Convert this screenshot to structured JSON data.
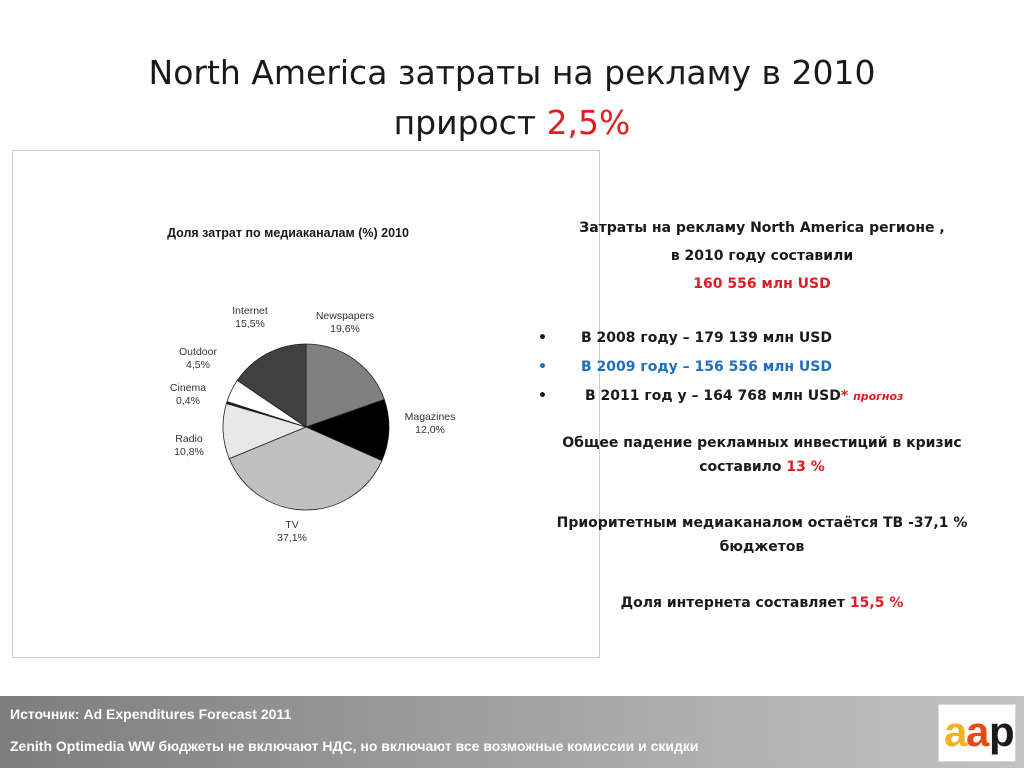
{
  "slide": {
    "title_line1": "North America затраты на рекламу в  2010",
    "title_line2_prefix": "прирост ",
    "title_line2_value": "2,5%"
  },
  "chart_data": {
    "type": "pie",
    "title": "Доля затрат по медиаканалам (%) 2010",
    "slices": [
      {
        "label": "Newspapers",
        "value": 19.6,
        "display": "19,6%",
        "color": "#808080"
      },
      {
        "label": "Magazines",
        "value": 12.0,
        "display": "12,0%",
        "color": "#000000"
      },
      {
        "label": "TV",
        "value": 37.1,
        "display": "37,1%",
        "color": "#c0c0c0"
      },
      {
        "label": "Radio",
        "value": 10.8,
        "display": "10,8%",
        "color": "#e8e8e8"
      },
      {
        "label": "Cinema",
        "value": 0.4,
        "display": "0,4%",
        "color": "#1a1a1a"
      },
      {
        "label": "Outdoor",
        "value": 4.5,
        "display": "4,5%",
        "color": "#ffffff"
      },
      {
        "label": "Internet",
        "value": 15.5,
        "display": "15,5%",
        "color": "#404040"
      }
    ]
  },
  "info": {
    "intro_line1": "Затраты на рекламу  North America регионе ,",
    "intro_line2": "в 2010 году составили",
    "intro_value": "160 556 млн USD",
    "bullet_symbol": "•",
    "bullet_2008": "В 2008 году – 179 139 млн USD",
    "bullet_2009": "В 2009 году – 156 556 млн USD",
    "bullet_2011": "В 2011 год у – 164 768 млн USD",
    "bullet_2011_star": "*",
    "bullet_2011_note": "прогноз",
    "decline_line1": "Общее падение рекламных инвестиций в  кризис",
    "decline_line2_prefix": "составило ",
    "decline_value": "13 %",
    "priority_line1": "Приоритетным медиаканалом остаётся ТВ -37,1 %",
    "priority_line2": "бюджетов",
    "internet_prefix": "Доля интернета составляет ",
    "internet_value": "15,5 %"
  },
  "footer": {
    "source_line1": "Источник: Ad Expenditures Forecast 2011",
    "source_line2": "Zenith Optimedia WW  бюджеты не включают НДС, но включают  все возможные комиссии и скидки"
  },
  "logo": {
    "text": "aap",
    "colors": [
      "#f2b21b",
      "#e64a19",
      "#1a1a1a"
    ]
  }
}
